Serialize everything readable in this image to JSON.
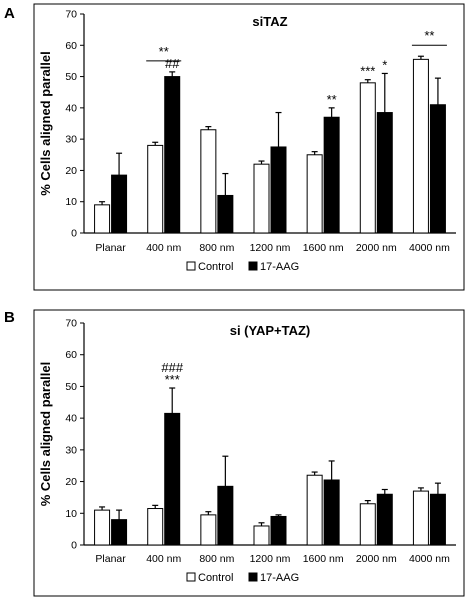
{
  "chart_data": [
    {
      "type": "bar",
      "panel_label": "A",
      "title": "siTAZ",
      "ylabel": "% Cells aligned parallel",
      "xlabel": "",
      "ylim": [
        0,
        70
      ],
      "yticks": [
        0,
        10,
        20,
        30,
        40,
        50,
        60,
        70
      ],
      "categories": [
        "Planar",
        "400 nm",
        "800 nm",
        "1200 nm",
        "1600 nm",
        "2000 nm",
        "4000 nm"
      ],
      "series": [
        {
          "name": "Control",
          "color": "#ffffff",
          "values": [
            9,
            28,
            33,
            22,
            25,
            48,
            55.5
          ],
          "errors": [
            1,
            1,
            1,
            1,
            1,
            1,
            1
          ]
        },
        {
          "name": "17-AAG",
          "color": "#000000",
          "values": [
            18.5,
            50,
            12,
            27.5,
            37,
            38.5,
            41
          ],
          "errors": [
            7,
            1.5,
            7,
            11,
            3,
            12.5,
            8.5
          ]
        }
      ],
      "annotations": [
        {
          "text": "**",
          "category": 1,
          "over": "pair",
          "line": true
        },
        {
          "text": "##",
          "category": 1,
          "over": "17-AAG"
        },
        {
          "text": "**",
          "category": 4,
          "over": "17-AAG"
        },
        {
          "text": "***",
          "category": 5,
          "over": "Control"
        },
        {
          "text": "*",
          "category": 5,
          "over": "17-AAG"
        },
        {
          "text": "**",
          "category": 6,
          "over": "pair",
          "line": true
        }
      ],
      "legend": {
        "position": "bottom",
        "items": [
          "Control",
          "17-AAG"
        ]
      }
    },
    {
      "type": "bar",
      "panel_label": "B",
      "title": "si (YAP+TAZ)",
      "ylabel": "% Cells aligned parallel",
      "xlabel": "",
      "ylim": [
        0,
        70
      ],
      "yticks": [
        0,
        10,
        20,
        30,
        40,
        50,
        60,
        70
      ],
      "categories": [
        "Planar",
        "400 nm",
        "800 nm",
        "1200 nm",
        "1600 nm",
        "2000 nm",
        "4000 nm"
      ],
      "series": [
        {
          "name": "Control",
          "color": "#ffffff",
          "values": [
            11,
            11.5,
            9.5,
            6,
            22,
            13,
            17
          ],
          "errors": [
            1,
            1,
            1,
            1,
            1,
            1,
            1
          ]
        },
        {
          "name": "17-AAG",
          "color": "#000000",
          "values": [
            8,
            41.5,
            18.5,
            9,
            20.5,
            16,
            16
          ],
          "errors": [
            3,
            8,
            9.5,
            0.5,
            6,
            1.5,
            3.5
          ]
        }
      ],
      "annotations": [
        {
          "text": "###",
          "category": 1,
          "over": "17-AAG",
          "row": 2
        },
        {
          "text": "***",
          "category": 1,
          "over": "17-AAG",
          "row": 1
        }
      ],
      "legend": {
        "position": "bottom",
        "items": [
          "Control",
          "17-AAG"
        ]
      }
    }
  ]
}
